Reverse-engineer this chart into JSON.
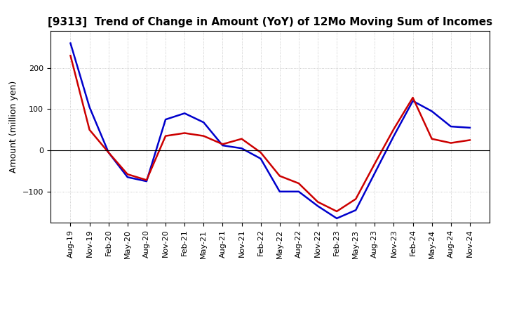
{
  "title": "[9313]  Trend of Change in Amount (YoY) of 12Mo Moving Sum of Incomes",
  "ylabel": "Amount (million yen)",
  "x_labels": [
    "Aug-19",
    "Nov-19",
    "Feb-20",
    "May-20",
    "Aug-20",
    "Nov-20",
    "Feb-21",
    "May-21",
    "Aug-21",
    "Nov-21",
    "Feb-22",
    "May-22",
    "Aug-22",
    "Nov-22",
    "Feb-23",
    "May-23",
    "Aug-23",
    "Nov-23",
    "Feb-24",
    "May-24",
    "Aug-24",
    "Nov-24"
  ],
  "ordinary_income": [
    260,
    105,
    -5,
    -65,
    -75,
    75,
    90,
    68,
    12,
    5,
    -20,
    -100,
    -100,
    -135,
    -165,
    -145,
    -55,
    35,
    120,
    95,
    58,
    55
  ],
  "net_income": [
    230,
    50,
    -5,
    -58,
    -72,
    35,
    42,
    35,
    15,
    28,
    -5,
    -62,
    -80,
    -125,
    -148,
    -118,
    -32,
    52,
    128,
    28,
    18,
    25
  ],
  "ordinary_color": "#0000cc",
  "net_color": "#cc0000",
  "ylim": [
    -175,
    290
  ],
  "yticks": [
    -100,
    0,
    100,
    200
  ],
  "background_color": "#ffffff",
  "grid_color": "#bbbbbb",
  "line_width": 1.8,
  "title_fontsize": 11,
  "ylabel_fontsize": 9,
  "tick_fontsize": 8,
  "legend_fontsize": 9
}
